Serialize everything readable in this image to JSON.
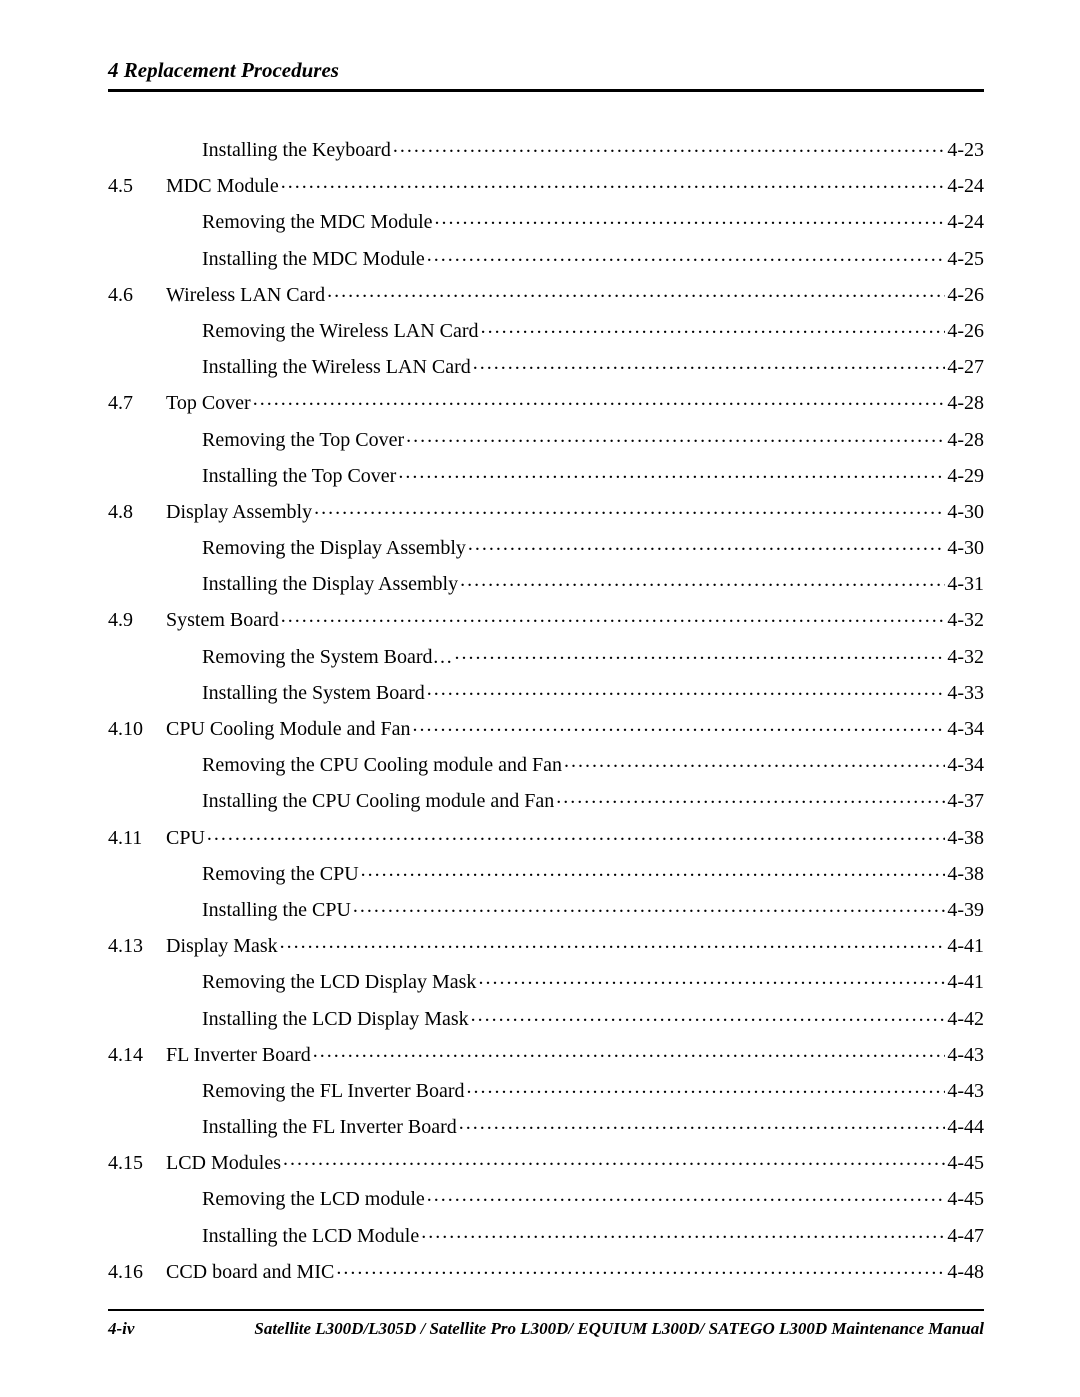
{
  "header": {
    "title": "4 Replacement Procedures"
  },
  "toc": {
    "entries": [
      {
        "num": "",
        "title": "Installing the Keyboard",
        "page": "4-23",
        "level": "sub"
      },
      {
        "num": "4.5",
        "title": "MDC Module",
        "page": "4-24",
        "level": "top"
      },
      {
        "num": "",
        "title": "Removing the MDC Module",
        "page": "4-24",
        "level": "sub"
      },
      {
        "num": "",
        "title": "Installing the MDC Module",
        "page": "4-25",
        "level": "sub"
      },
      {
        "num": "4.6",
        "title": "Wireless LAN Card",
        "page": "4-26",
        "level": "top"
      },
      {
        "num": "",
        "title": "Removing the Wireless LAN Card",
        "page": "4-26",
        "level": "sub"
      },
      {
        "num": "",
        "title": "Installing the Wireless LAN Card",
        "page": "4-27",
        "level": "sub"
      },
      {
        "num": "4.7",
        "title": "Top Cover",
        "page": "4-28",
        "level": "top"
      },
      {
        "num": "",
        "title": "Removing the Top Cover",
        "page": "4-28",
        "level": "sub"
      },
      {
        "num": "",
        "title": "Installing the Top Cover",
        "page": "4-29",
        "level": "sub"
      },
      {
        "num": "4.8",
        "title": "Display Assembly",
        "page": "4-30",
        "level": "top"
      },
      {
        "num": "",
        "title": "Removing the Display Assembly",
        "page": "4-30",
        "level": "sub"
      },
      {
        "num": "",
        "title": "Installing the Display Assembly",
        "page": "4-31",
        "level": "sub"
      },
      {
        "num": "4.9",
        "title": "System Board",
        "page": "4-32",
        "level": "top"
      },
      {
        "num": "",
        "title": "Removing the System Board…",
        "page": "4-32",
        "level": "sub"
      },
      {
        "num": "",
        "title": "Installing the System Board",
        "page": "4-33",
        "level": "sub"
      },
      {
        "num": "4.10",
        "title": "CPU Cooling Module and Fan",
        "page": "4-34",
        "level": "top"
      },
      {
        "num": "",
        "title": "Removing the CPU Cooling module and Fan",
        "page": "4-34",
        "level": "sub"
      },
      {
        "num": "",
        "title": "Installing the CPU Cooling module and Fan",
        "page": "4-37",
        "level": "sub"
      },
      {
        "num": "4.11",
        "title": "CPU",
        "page": "4-38",
        "level": "top"
      },
      {
        "num": "",
        "title": "Removing the CPU",
        "page": "4-38",
        "level": "sub"
      },
      {
        "num": "",
        "title": "Installing the CPU",
        "page": "4-39",
        "level": "sub"
      },
      {
        "num": "4.13",
        "title": "Display Mask",
        "page": "4-41",
        "level": "top"
      },
      {
        "num": "",
        "title": "Removing the LCD Display Mask",
        "page": "4-41",
        "level": "sub"
      },
      {
        "num": "",
        "title": "Installing the LCD Display Mask",
        "page": "4-42",
        "level": "sub"
      },
      {
        "num": "4.14",
        "title": "FL Inverter Board",
        "page": "4-43",
        "level": "top"
      },
      {
        "num": "",
        "title": "Removing the FL Inverter Board",
        "page": "4-43",
        "level": "sub"
      },
      {
        "num": "",
        "title": "Installing the FL Inverter Board",
        "page": "4-44",
        "level": "sub"
      },
      {
        "num": "4.15",
        "title": "LCD Modules",
        "page": "4-45",
        "level": "top"
      },
      {
        "num": "",
        "title": "Removing the LCD module ",
        "page": "4-45",
        "level": "sub"
      },
      {
        "num": "",
        "title": "Installing the LCD Module",
        "page": "4-47",
        "level": "sub"
      },
      {
        "num": "4.16",
        "title": "CCD board and MIC",
        "page": "4-48",
        "level": "top"
      }
    ]
  },
  "footer": {
    "page_label": "4-iv",
    "manual_title": "Satellite L300D/L305D / Satellite Pro L300D/ EQUIUM L300D/ SATEGO L300D Maintenance Manual"
  }
}
